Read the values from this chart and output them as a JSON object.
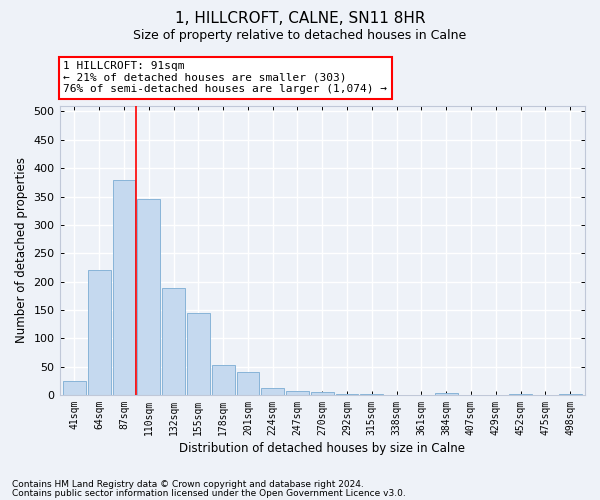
{
  "title": "1, HILLCROFT, CALNE, SN11 8HR",
  "subtitle": "Size of property relative to detached houses in Calne",
  "xlabel": "Distribution of detached houses by size in Calne",
  "ylabel": "Number of detached properties",
  "bar_color": "#c5d9ef",
  "bar_edge_color": "#88b4d8",
  "categories": [
    "41sqm",
    "64sqm",
    "87sqm",
    "110sqm",
    "132sqm",
    "155sqm",
    "178sqm",
    "201sqm",
    "224sqm",
    "247sqm",
    "270sqm",
    "292sqm",
    "315sqm",
    "338sqm",
    "361sqm",
    "384sqm",
    "407sqm",
    "429sqm",
    "452sqm",
    "475sqm",
    "498sqm"
  ],
  "values": [
    25,
    220,
    380,
    345,
    188,
    145,
    53,
    40,
    12,
    7,
    5,
    2,
    1,
    0,
    0,
    3,
    0,
    0,
    1,
    0,
    1
  ],
  "ylim": [
    0,
    510
  ],
  "yticks": [
    0,
    50,
    100,
    150,
    200,
    250,
    300,
    350,
    400,
    450,
    500
  ],
  "red_line_index": 2.5,
  "annotation_line1": "1 HILLCROFT: 91sqm",
  "annotation_line2": "← 21% of detached houses are smaller (303)",
  "annotation_line3": "76% of semi-detached houses are larger (1,074) →",
  "footnote1": "Contains HM Land Registry data © Crown copyright and database right 2024.",
  "footnote2": "Contains public sector information licensed under the Open Government Licence v3.0.",
  "background_color": "#eef2f8",
  "grid_color": "#ffffff",
  "spine_color": "#c0c8d8"
}
